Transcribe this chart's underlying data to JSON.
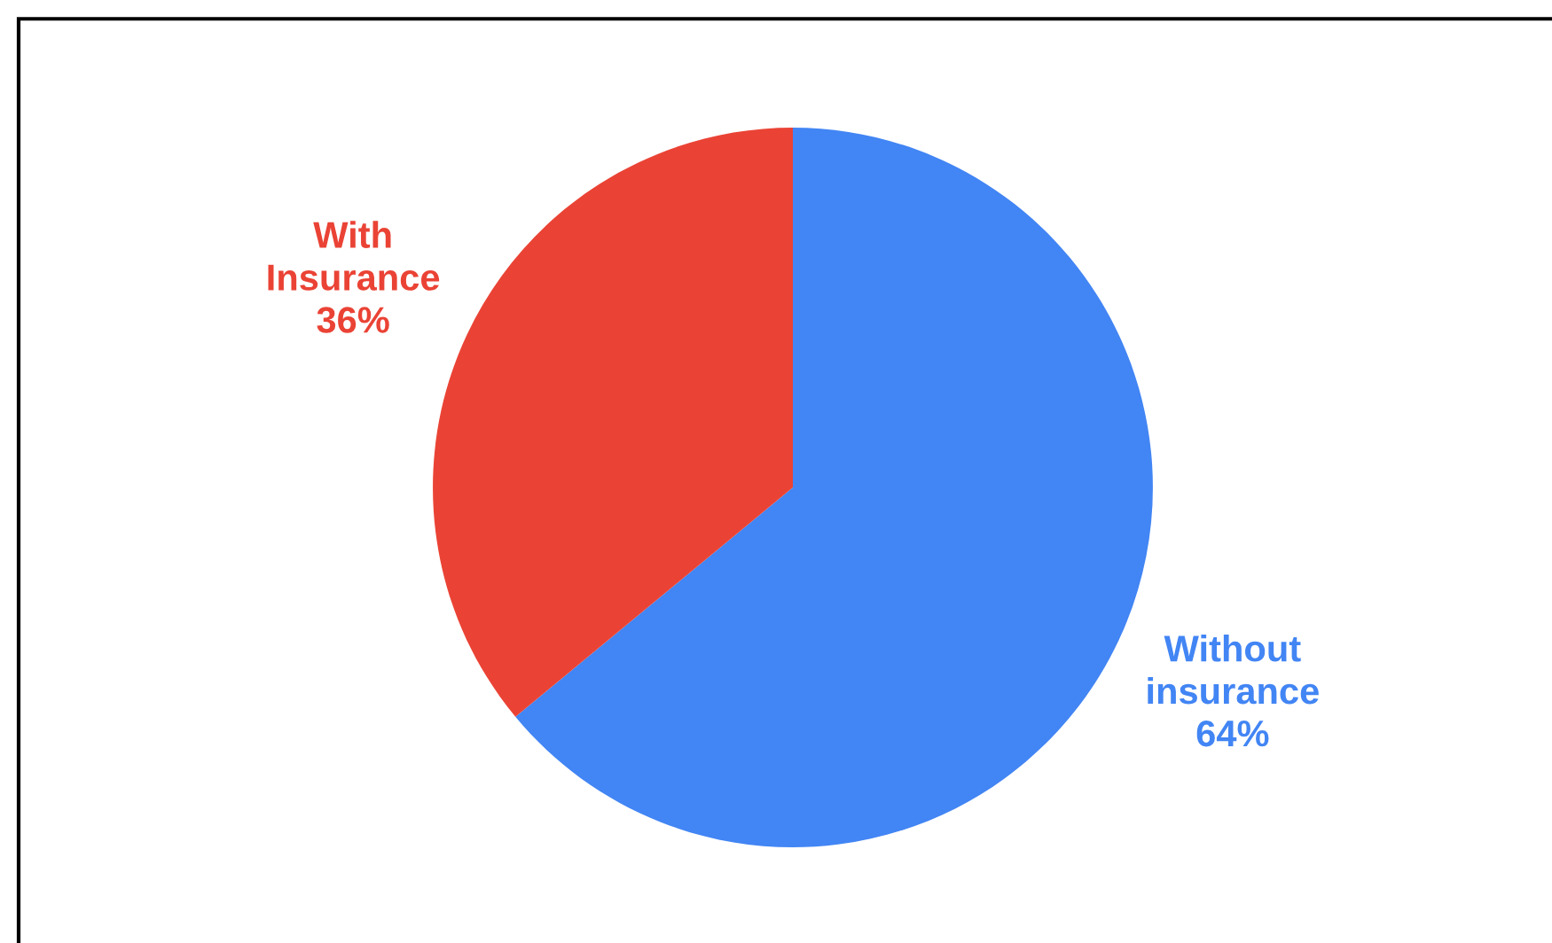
{
  "chart_data": {
    "type": "pie",
    "categories": [
      "Without\ninsurance",
      "With\nInsurance"
    ],
    "values": [
      64,
      36
    ],
    "colors": [
      "#4285f4",
      "#ea4335"
    ],
    "value_labels": [
      "64%",
      "36%"
    ],
    "legend": false
  }
}
